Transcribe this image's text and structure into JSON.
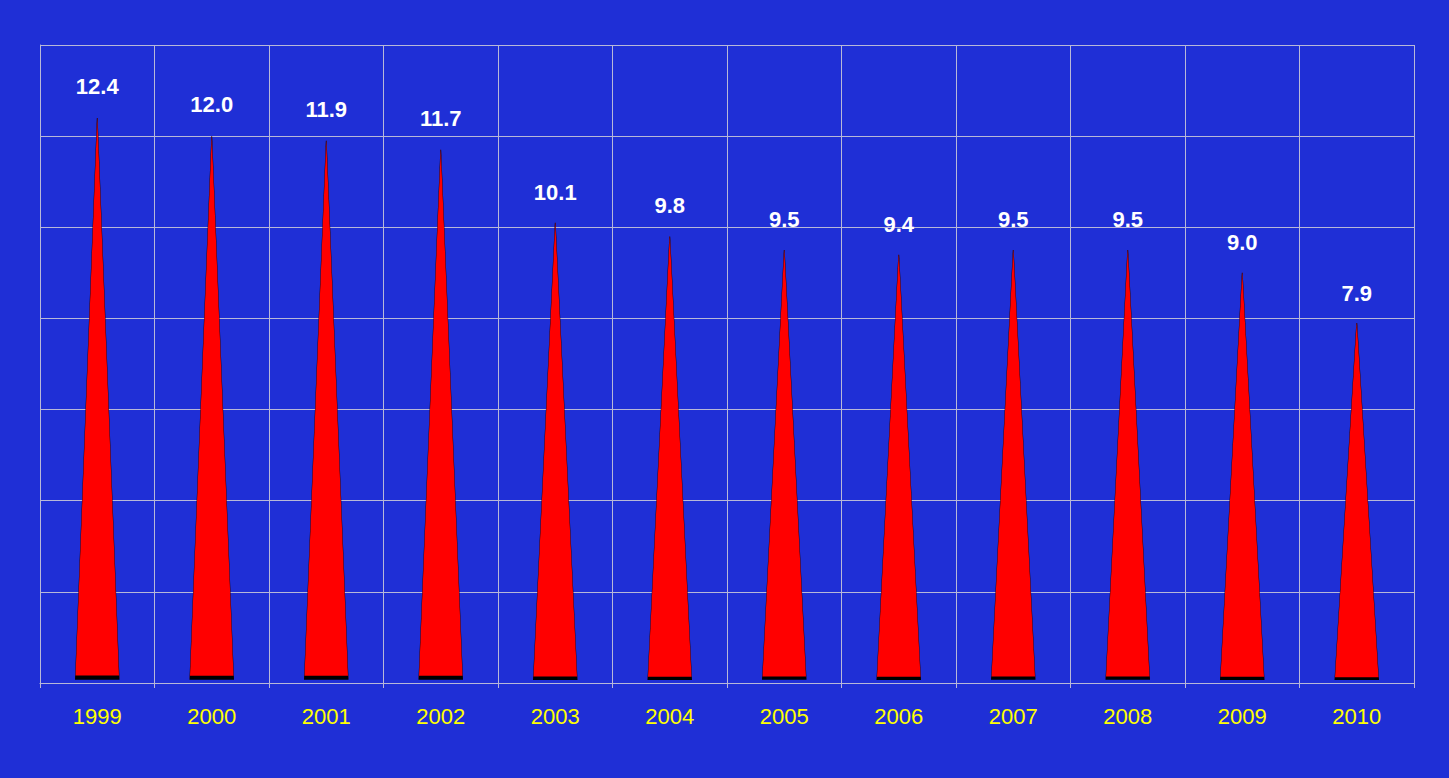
{
  "chart_data": {
    "type": "bar",
    "categories": [
      "1999",
      "2000",
      "2001",
      "2002",
      "2003",
      "2004",
      "2005",
      "2006",
      "2007",
      "2008",
      "2009",
      "2010"
    ],
    "values": [
      12.4,
      12.0,
      11.9,
      11.7,
      10.1,
      9.8,
      9.5,
      9.4,
      9.5,
      9.5,
      9.0,
      7.9
    ],
    "value_labels": [
      "12.4",
      "12.0",
      "11.9",
      "11.7",
      "10.1",
      "9.8",
      "9.5",
      "9.4",
      "9.5",
      "9.5",
      "9.0",
      "7.9"
    ],
    "color": "#ff0000",
    "ylim": [
      0,
      14
    ],
    "yticks": [
      0,
      2,
      4,
      6,
      8,
      10,
      12,
      14
    ],
    "grid": true,
    "data_labels": true,
    "tick_labels": "x"
  }
}
